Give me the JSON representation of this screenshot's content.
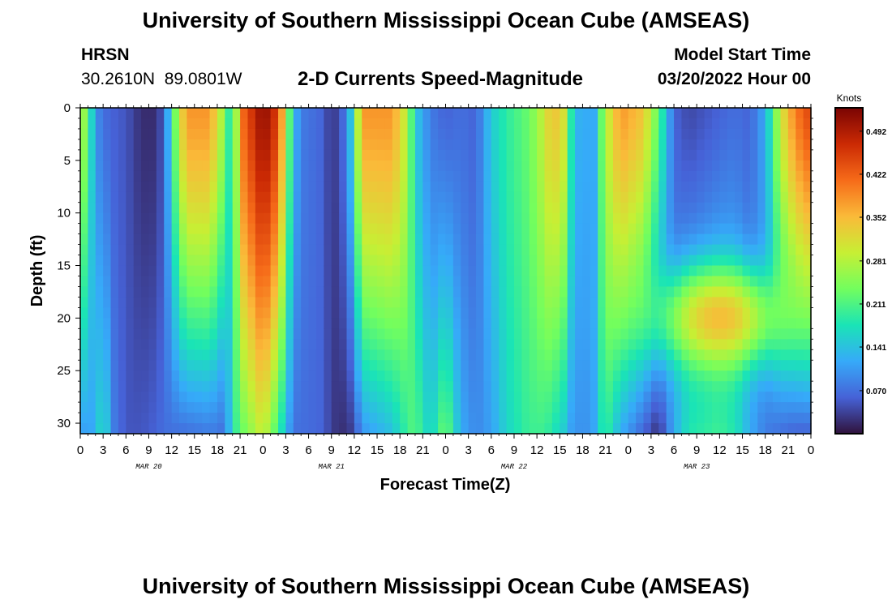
{
  "header": {
    "title": "University of Southern Mississippi Ocean Cube (AMSEAS)",
    "station": "HRSN",
    "coords": "30.2610N  89.0801W",
    "product": "2-D Currents Speed-Magnitude",
    "start_label": "Model Start Time",
    "start_value": "03/20/2022 Hour 00"
  },
  "footer": {
    "title": "University of Southern Mississippi Ocean Cube (AMSEAS)"
  },
  "chart_data": {
    "type": "heatmap",
    "title": "2-D Currents Speed-Magnitude",
    "xlabel": "Forecast Time(Z)",
    "ylabel": "Depth (ft)",
    "colorbar_label": "Knots",
    "x_ticks": [
      "0",
      "3",
      "6",
      "9",
      "12",
      "15",
      "18",
      "21",
      "0",
      "3",
      "6",
      "9",
      "12",
      "15",
      "18",
      "21",
      "0",
      "3",
      "6",
      "9",
      "12",
      "15",
      "18",
      "21",
      "0",
      "3",
      "6",
      "9",
      "12",
      "15",
      "18",
      "21",
      "0"
    ],
    "date_labels": [
      "MAR 20",
      "MAR 21",
      "MAR 22",
      "MAR 23"
    ],
    "xlim_hours": [
      0,
      96
    ],
    "y_ticks": [
      0,
      5,
      10,
      15,
      20,
      25,
      30
    ],
    "ylim": [
      0,
      31
    ],
    "colorbar_ticks": [
      "0.492",
      "0.422",
      "0.352",
      "0.281",
      "0.211",
      "0.141",
      "0.070"
    ],
    "colorbar_range": [
      0,
      0.53
    ],
    "colors": [
      "#30123b",
      "#4662d7",
      "#36aaf9",
      "#1ae4b6",
      "#72fe5e",
      "#c7ef34",
      "#faba39",
      "#f66b19",
      "#cb2a04",
      "#7a0403"
    ],
    "speed_profiles": [
      {
        "hour": 0,
        "top": 0.3,
        "bottom": 0.1
      },
      {
        "hour": 1,
        "top": 0.22,
        "bottom": 0.12
      },
      {
        "hour": 2,
        "top": 0.1,
        "bottom": 0.11
      },
      {
        "hour": 3,
        "top": 0.07,
        "bottom": 0.2
      },
      {
        "hour": 4,
        "top": 0.06,
        "bottom": 0.09
      },
      {
        "hour": 6,
        "top": 0.05,
        "bottom": 0.05
      },
      {
        "hour": 8,
        "top": 0.02,
        "bottom": 0.05
      },
      {
        "hour": 10,
        "top": 0.02,
        "bottom": 0.06
      },
      {
        "hour": 11,
        "top": 0.06,
        "bottom": 0.07
      },
      {
        "hour": 13,
        "top": 0.3,
        "bottom": 0.07
      },
      {
        "hour": 14,
        "top": 0.38,
        "bottom": 0.07
      },
      {
        "hour": 17,
        "top": 0.38,
        "bottom": 0.08
      },
      {
        "hour": 19,
        "top": 0.25,
        "bottom": 0.07
      },
      {
        "hour": 20,
        "top": 0.14,
        "bottom": 0.18
      },
      {
        "hour": 21,
        "top": 0.4,
        "bottom": 0.22
      },
      {
        "hour": 24,
        "top": 0.52,
        "bottom": 0.3
      },
      {
        "hour": 26,
        "top": 0.45,
        "bottom": 0.2
      },
      {
        "hour": 28,
        "top": 0.14,
        "bottom": 0.07
      },
      {
        "hour": 29,
        "top": 0.08,
        "bottom": 0.07
      },
      {
        "hour": 32,
        "top": 0.06,
        "bottom": 0.06
      },
      {
        "hour": 33,
        "top": 0.02,
        "bottom": 0.03
      },
      {
        "hour": 35,
        "top": 0.08,
        "bottom": 0.02
      },
      {
        "hour": 36,
        "top": 0.2,
        "bottom": 0.04
      },
      {
        "hour": 37,
        "top": 0.38,
        "bottom": 0.1
      },
      {
        "hour": 41,
        "top": 0.38,
        "bottom": 0.14
      },
      {
        "hour": 43,
        "top": 0.28,
        "bottom": 0.2
      },
      {
        "hour": 44,
        "top": 0.15,
        "bottom": 0.22
      },
      {
        "hour": 46,
        "top": 0.08,
        "bottom": 0.15
      },
      {
        "hour": 48,
        "top": 0.06,
        "bottom": 0.24
      },
      {
        "hour": 50,
        "top": 0.07,
        "bottom": 0.12
      },
      {
        "hour": 52,
        "top": 0.06,
        "bottom": 0.09
      },
      {
        "hour": 54,
        "top": 0.15,
        "bottom": 0.11
      },
      {
        "hour": 56,
        "top": 0.19,
        "bottom": 0.16
      },
      {
        "hour": 59,
        "top": 0.23,
        "bottom": 0.2
      },
      {
        "hour": 61,
        "top": 0.3,
        "bottom": 0.2
      },
      {
        "hour": 62,
        "top": 0.35,
        "bottom": 0.18
      },
      {
        "hour": 64,
        "top": 0.3,
        "bottom": 0.14
      },
      {
        "hour": 65,
        "top": 0.07,
        "bottom": 0.08
      },
      {
        "hour": 66,
        "top": 0.18,
        "bottom": 0.12
      },
      {
        "hour": 67,
        "top": 0.06,
        "bottom": 0.08
      },
      {
        "hour": 68,
        "top": 0.18,
        "bottom": 0.15
      },
      {
        "hour": 69,
        "top": 0.28,
        "bottom": 0.2
      },
      {
        "hour": 71,
        "top": 0.38,
        "bottom": 0.12
      },
      {
        "hour": 74,
        "top": 0.34,
        "bottom": 0.06
      },
      {
        "hour": 76,
        "top": 0.22,
        "bottom": 0.02
      },
      {
        "hour": 78,
        "top": 0.06,
        "bottom": 0.12
      },
      {
        "hour": 80,
        "top": 0.04,
        "bottom": 0.18
      },
      {
        "hour": 82,
        "top": 0.05,
        "bottom": 0.19
      },
      {
        "hour": 84,
        "top": 0.06,
        "bottom": 0.2
      },
      {
        "hour": 86,
        "top": 0.07,
        "bottom": 0.18
      },
      {
        "hour": 88,
        "top": 0.06,
        "bottom": 0.12
      },
      {
        "hour": 90,
        "top": 0.12,
        "bottom": 0.08
      },
      {
        "hour": 92,
        "top": 0.3,
        "bottom": 0.07
      },
      {
        "hour": 94,
        "top": 0.4,
        "bottom": 0.06
      },
      {
        "hour": 96,
        "top": 0.45,
        "bottom": 0.06
      }
    ],
    "deep_core": {
      "hour_center": 84,
      "hour_halfwidth": 8,
      "depth_center": 20,
      "depth_halfwidth": 5,
      "speed": 0.36
    }
  }
}
